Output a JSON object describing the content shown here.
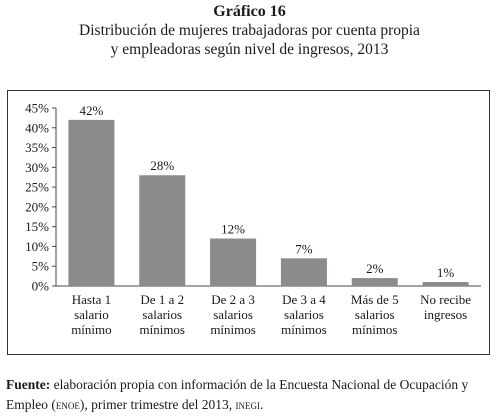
{
  "figure": {
    "label": "Gráfico 16",
    "title_line1": "Distribución de mujeres trabajadoras por cuenta propia",
    "title_line2": "y empleadoras según nivel de ingresos, 2013"
  },
  "chart_data": {
    "type": "bar",
    "categories": [
      [
        "Hasta 1",
        "salario",
        "mínimo"
      ],
      [
        "De 1 a 2",
        "salarios",
        "mínimos"
      ],
      [
        "De 2 a 3",
        "salarios",
        "mínimos"
      ],
      [
        "De 3 a 4",
        "salarios",
        "mínimos"
      ],
      [
        "Más de 5",
        "salarios",
        "mínimos"
      ],
      [
        "No recibe",
        "ingresos"
      ]
    ],
    "values": [
      42,
      28,
      12,
      7,
      2,
      1
    ],
    "data_labels": [
      "42%",
      "28%",
      "12%",
      "7%",
      "2%",
      "1%"
    ],
    "ylim": [
      0,
      45
    ],
    "yticks": [
      0,
      5,
      10,
      15,
      20,
      25,
      30,
      35,
      40,
      45
    ],
    "ytick_labels": [
      "0%",
      "5%",
      "10%",
      "15%",
      "20%",
      "25%",
      "30%",
      "35%",
      "40%",
      "45%"
    ],
    "bar_color": "#8c8a8c",
    "legend": "none",
    "grid": false
  },
  "source": {
    "label": "Fuente:",
    "text_part1": " elaboración propia con información de la Encuesta Nacional de Ocupación y Empleo (",
    "abbr1": "enoe",
    "text_part2": "), primer trimestre del 2013, ",
    "abbr2": "inegi",
    "text_part3": "."
  }
}
